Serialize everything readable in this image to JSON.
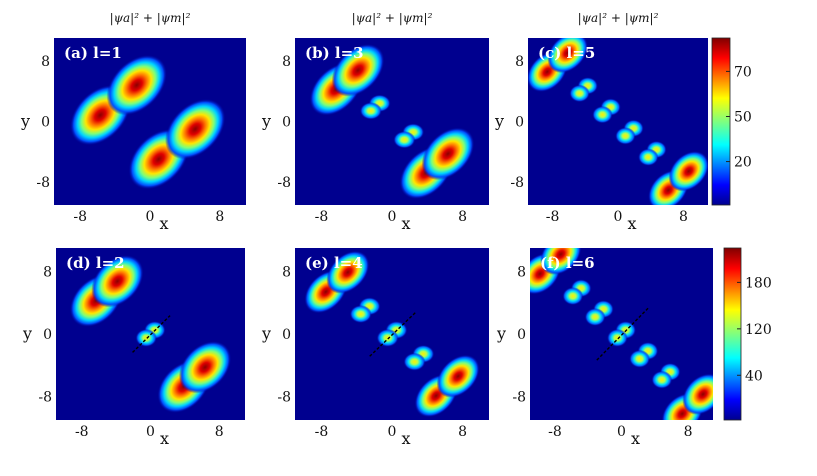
{
  "chart_data": [
    {
      "type": "heatmap",
      "panel": "(a) l=1",
      "l": 1,
      "title": "|ψa|² + |ψm|²",
      "xlabel": "x",
      "ylabel": "y",
      "xticks": [
        "-8",
        "0",
        "8"
      ],
      "yticks": [
        "8",
        "0",
        "-8"
      ],
      "xlim": [
        -11,
        11
      ],
      "ylim": [
        -11,
        11
      ],
      "defect_line": false
    },
    {
      "type": "heatmap",
      "panel": "(b) l=3",
      "l": 3,
      "title": "|ψa|² + |ψm|²",
      "xlabel": "x",
      "ylabel": "y",
      "xticks": [
        "-8",
        "0",
        "8"
      ],
      "yticks": [
        "8",
        "0",
        "-8"
      ],
      "xlim": [
        -11,
        11
      ],
      "ylim": [
        -11,
        11
      ],
      "defect_line": false
    },
    {
      "type": "heatmap",
      "panel": "(c) l=5",
      "l": 5,
      "title": "|ψa|² + |ψm|²",
      "xlabel": "x",
      "ylabel": "y",
      "xticks": [
        "-8",
        "0",
        "8"
      ],
      "yticks": [
        "8",
        "0",
        "-8"
      ],
      "xlim": [
        -11,
        11
      ],
      "ylim": [
        -11,
        11
      ],
      "defect_line": false,
      "colorbar": {
        "ticks": [
          "70",
          "50",
          "20"
        ]
      }
    },
    {
      "type": "heatmap",
      "panel": "(d) l=2",
      "l": 2,
      "xlabel": "x",
      "ylabel": "y",
      "xticks": [
        "-8",
        "0",
        "8"
      ],
      "yticks": [
        "8",
        "0",
        "-8"
      ],
      "xlim": [
        -11,
        11
      ],
      "ylim": [
        -11,
        11
      ],
      "defect_line": true
    },
    {
      "type": "heatmap",
      "panel": "(e) l=4",
      "l": 4,
      "xlabel": "x",
      "ylabel": "y",
      "xticks": [
        "-8",
        "0",
        "8"
      ],
      "yticks": [
        "8",
        "0",
        "-8"
      ],
      "xlim": [
        -11,
        11
      ],
      "ylim": [
        -11,
        11
      ],
      "defect_line": true
    },
    {
      "type": "heatmap",
      "panel": "(f) l=6",
      "l": 6,
      "xlabel": "x",
      "ylabel": "y",
      "xticks": [
        "-8",
        "0",
        "8"
      ],
      "yticks": [
        "8",
        "0",
        "-8"
      ],
      "xlim": [
        -11,
        11
      ],
      "ylim": [
        -11,
        11
      ],
      "defect_line": true,
      "colorbar": {
        "ticks": [
          "180",
          "120",
          "40"
        ]
      }
    }
  ],
  "colormap": "jet",
  "colors": {
    "background": "#00008f",
    "peak": "#800000",
    "line": "#000000"
  }
}
